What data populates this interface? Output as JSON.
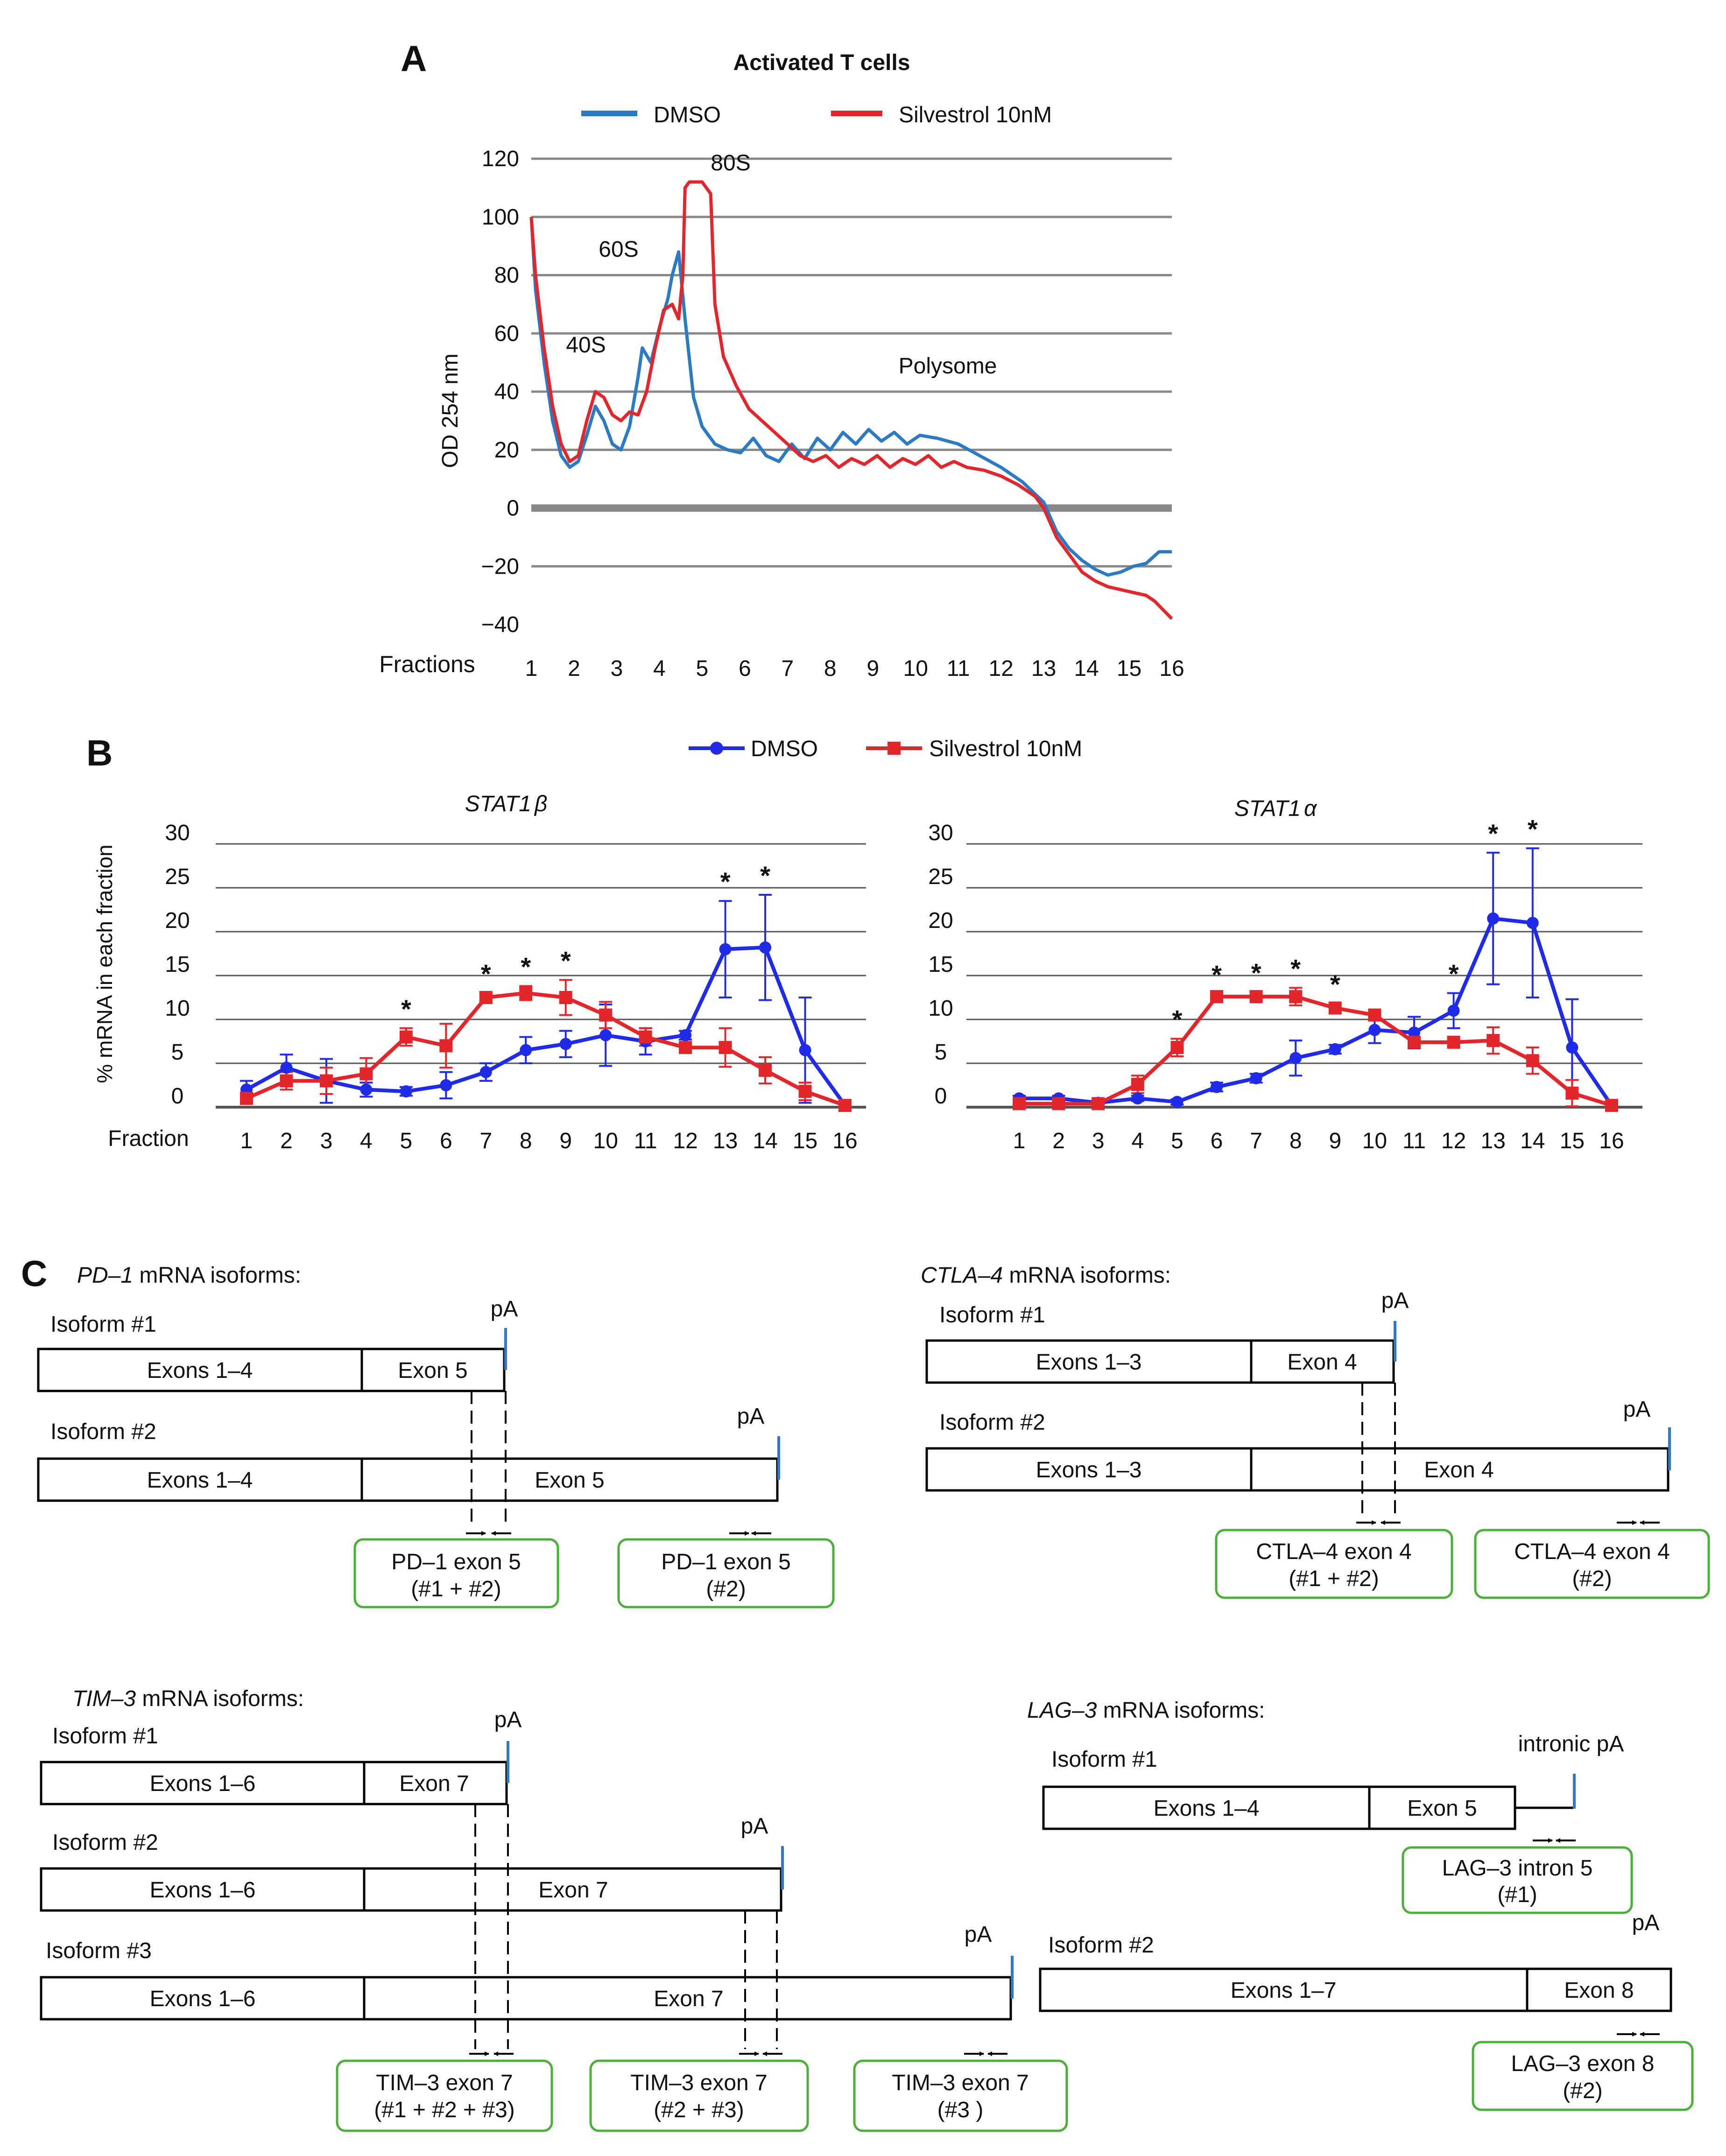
{
  "panel_labels": {
    "a": "A",
    "b": "B",
    "c": "C"
  },
  "panelA": {
    "title": "Activated T cells",
    "legend": [
      {
        "label": "DMSO",
        "color": "#2b7bc4"
      },
      {
        "label": "Silvestrol 10nM",
        "color": "#e3262b"
      }
    ],
    "ylabel": "OD 254 nm",
    "xlabel": "Fractions",
    "peaks": {
      "s40": "40S",
      "s60": "60S",
      "s80": "80S",
      "poly": "Polysome"
    }
  },
  "chart_data": [
    {
      "type": "line",
      "title": "Activated T cells",
      "xlabel": "Fractions",
      "ylabel": "OD 254 nm",
      "ylim": [
        -40,
        120
      ],
      "yticks": [
        120,
        100,
        80,
        60,
        40,
        20,
        0,
        -20,
        -40
      ],
      "ytick_labels": [
        "120",
        "100",
        "80",
        "60",
        "40",
        "20",
        "0",
        "−20",
        "−40"
      ],
      "xlim": [
        1,
        16
      ],
      "categories": [
        "1",
        "2",
        "3",
        "4",
        "5",
        "6",
        "7",
        "8",
        "9",
        "10",
        "11",
        "12",
        "13",
        "14",
        "15",
        "16"
      ],
      "series": [
        {
          "name": "DMSO",
          "color": "#2b7bc4",
          "x": [
            1,
            1.1,
            1.3,
            1.5,
            1.7,
            1.9,
            2.1,
            2.3,
            2.5,
            2.7,
            2.9,
            3.1,
            3.3,
            3.5,
            3.6,
            3.8,
            4.0,
            4.2,
            4.3,
            4.45,
            4.6,
            4.8,
            5.0,
            5.3,
            5.6,
            5.9,
            6.2,
            6.5,
            6.8,
            7.1,
            7.4,
            7.7,
            8.0,
            8.3,
            8.6,
            8.9,
            9.2,
            9.5,
            9.8,
            10.1,
            10.5,
            11.0,
            11.5,
            12.0,
            12.5,
            13.0,
            13.3,
            13.6,
            13.9,
            14.2,
            14.5,
            14.8,
            15.1,
            15.4,
            15.7,
            16.0
          ],
          "y": [
            100,
            75,
            50,
            30,
            18,
            14,
            16,
            25,
            35,
            30,
            22,
            20,
            28,
            45,
            55,
            50,
            62,
            72,
            80,
            88,
            65,
            38,
            28,
            22,
            20,
            19,
            24,
            18,
            16,
            22,
            17,
            24,
            20,
            26,
            22,
            27,
            23,
            26,
            22,
            25,
            24,
            22,
            18,
            14,
            9,
            2,
            -8,
            -14,
            -18,
            -21,
            -23,
            -22,
            -20,
            -19,
            -15,
            -15
          ]
        },
        {
          "name": "Silvestrol 10nM",
          "color": "#e3262b",
          "x": [
            1,
            1.1,
            1.3,
            1.5,
            1.7,
            1.9,
            2.1,
            2.3,
            2.5,
            2.7,
            2.9,
            3.1,
            3.3,
            3.5,
            3.7,
            3.9,
            4.1,
            4.3,
            4.45,
            4.55,
            4.6,
            4.7,
            5.0,
            5.2,
            5.3,
            5.5,
            5.8,
            6.1,
            6.4,
            6.7,
            7.0,
            7.3,
            7.6,
            7.9,
            8.2,
            8.5,
            8.8,
            9.1,
            9.4,
            9.7,
            10.0,
            10.3,
            10.6,
            10.9,
            11.2,
            11.6,
            12.0,
            12.4,
            12.8,
            13.0,
            13.3,
            13.6,
            13.9,
            14.2,
            14.5,
            14.8,
            15.1,
            15.4,
            15.6,
            15.8,
            16.0
          ],
          "y": [
            100,
            80,
            55,
            35,
            22,
            16,
            18,
            30,
            40,
            38,
            32,
            30,
            33,
            32,
            40,
            55,
            68,
            70,
            65,
            80,
            110,
            112,
            112,
            108,
            70,
            52,
            42,
            34,
            30,
            26,
            22,
            18,
            16,
            18,
            14,
            17,
            15,
            18,
            14,
            17,
            15,
            18,
            14,
            16,
            14,
            13,
            11,
            8,
            4,
            0,
            -10,
            -16,
            -22,
            -25,
            -27,
            -28,
            -29,
            -30,
            -32,
            -35,
            -38
          ]
        }
      ]
    },
    {
      "type": "line",
      "title": "STAT1β",
      "xlabel": "Fraction",
      "ylabel": "% mRNA in each fraction",
      "ylim": [
        0,
        30
      ],
      "yticks": [
        0,
        5,
        10,
        15,
        20,
        25,
        30
      ],
      "categories": [
        "1",
        "2",
        "3",
        "4",
        "5",
        "6",
        "7",
        "8",
        "9",
        "10",
        "11",
        "12",
        "13",
        "14",
        "15",
        "16"
      ],
      "significant": [
        "5",
        "7",
        "8",
        "9",
        "13",
        "14"
      ],
      "series": [
        {
          "name": "DMSO",
          "color": "#1f2be8",
          "values": [
            2,
            4.5,
            3,
            2,
            1.8,
            2.5,
            4,
            6.5,
            7.2,
            8.2,
            7.5,
            8.2,
            18,
            18.2,
            6.5,
            0.2
          ],
          "errors": [
            1,
            1.5,
            2.5,
            0.8,
            0.5,
            1.5,
            1,
            1.5,
            1.5,
            3.5,
            1.5,
            0.5,
            5.5,
            6,
            6,
            0
          ]
        },
        {
          "name": "Silvestrol 10nM",
          "color": "#e3262b",
          "values": [
            1,
            3,
            3,
            3.8,
            8,
            7,
            12.5,
            13,
            12.5,
            10.5,
            8,
            6.8,
            6.8,
            4.2,
            1.8,
            0.2
          ],
          "errors": [
            0.5,
            1,
            1.5,
            1.8,
            1,
            2.5,
            0.5,
            0.8,
            2,
            1.5,
            1,
            0.5,
            2.2,
            1.5,
            1,
            0
          ]
        }
      ]
    },
    {
      "type": "line",
      "title": "STAT1α",
      "xlabel": "Fraction",
      "ylabel": "% mRNA in each fraction",
      "ylim": [
        0,
        30
      ],
      "yticks": [
        0,
        5,
        10,
        15,
        20,
        25,
        30
      ],
      "categories": [
        "1",
        "2",
        "3",
        "4",
        "5",
        "6",
        "7",
        "8",
        "9",
        "10",
        "11",
        "12",
        "13",
        "14",
        "15",
        "16"
      ],
      "significant": [
        "5",
        "6",
        "7",
        "8",
        "9",
        "12",
        "13",
        "14"
      ],
      "series": [
        {
          "name": "DMSO",
          "color": "#1f2be8",
          "values": [
            1,
            1,
            0.5,
            1,
            0.6,
            2.3,
            3.3,
            5.6,
            6.6,
            8.8,
            8.5,
            11,
            21.5,
            21,
            6.8,
            0.2
          ],
          "errors": [
            0.3,
            0.3,
            0.3,
            0.3,
            0.3,
            0.5,
            0.5,
            2,
            0.5,
            1.5,
            1.8,
            2,
            7.5,
            8.5,
            5.5,
            0
          ]
        },
        {
          "name": "Silvestrol 10nM",
          "color": "#e3262b",
          "values": [
            0.4,
            0.4,
            0.4,
            2.6,
            6.8,
            12.6,
            12.6,
            12.6,
            11.3,
            10.5,
            7.4,
            7.4,
            7.6,
            5.3,
            1.6,
            0.2
          ],
          "errors": [
            0.2,
            0.2,
            0.2,
            1,
            1,
            0.3,
            0.5,
            1,
            0.5,
            0.5,
            0.5,
            0.5,
            1.5,
            1.5,
            1.5,
            0
          ]
        }
      ]
    }
  ],
  "panelB": {
    "legend": [
      {
        "label": "DMSO",
        "color": "#1f2be8"
      },
      {
        "label": "Silvestrol 10nM",
        "color": "#e3262b"
      }
    ],
    "ylabel": "% mRNA in each fraction",
    "xlabel": "Fraction",
    "titles": {
      "beta": "STAT1",
      "beta_greek": "β",
      "alpha": "STAT1",
      "alpha_greek": "α"
    },
    "star": "*"
  },
  "panelC": {
    "pd1": {
      "gene": "PD–1",
      "suffix": " mRNA isoforms:",
      "isoform1": "Isoform #1",
      "isoform2": "Isoform #2",
      "exons14": "Exons 1–4",
      "exon5": "Exon 5",
      "pA": "pA",
      "primer1": [
        "PD–1 exon 5",
        "(#1 + #2)"
      ],
      "primer2": [
        "PD–1 exon 5",
        "(#2)"
      ]
    },
    "ctla4": {
      "gene": "CTLA–4",
      "suffix": " mRNA isoforms:",
      "isoform1": "Isoform #1",
      "isoform2": "Isoform #2",
      "exons13": "Exons 1–3",
      "exon4": "Exon 4",
      "pA": "pA",
      "primer1": [
        "CTLA–4 exon 4",
        "(#1 + #2)"
      ],
      "primer2": [
        "CTLA–4 exon 4",
        "(#2)"
      ]
    },
    "tim3": {
      "gene": "TIM–3",
      "suffix": " mRNA isoforms:",
      "isoform1": "Isoform #1",
      "isoform2": "Isoform #2",
      "isoform3": "Isoform #3",
      "exons16": "Exons 1–6",
      "exon7": "Exon 7",
      "pA": "pA",
      "primer1": [
        "TIM–3 exon 7",
        "(#1 + #2 + #3)"
      ],
      "primer2": [
        "TIM–3 exon 7",
        "(#2 + #3)"
      ],
      "primer3": [
        "TIM–3 exon 7",
        "(#3 )"
      ]
    },
    "lag3": {
      "gene": "LAG–3",
      "suffix": " mRNA isoforms:",
      "isoform1": "Isoform #1",
      "isoform2": "Isoform #2",
      "exons14": "Exons 1–4",
      "exon5": "Exon 5",
      "exons17": "Exons 1–7",
      "exon8": "Exon 8",
      "intronic_pA": "intronic pA",
      "pA": "pA",
      "primer1": [
        "LAG–3 intron 5",
        "(#1)"
      ],
      "primer2": [
        "LAG–3 exon 8",
        "(#2)"
      ]
    }
  }
}
